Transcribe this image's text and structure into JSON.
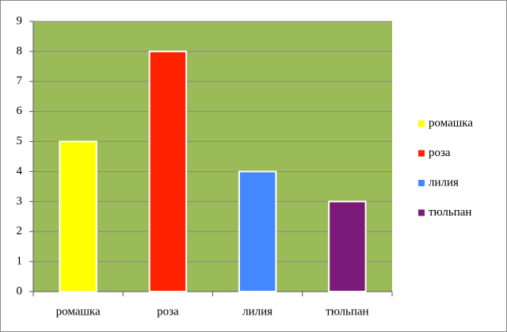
{
  "chart_data": {
    "type": "bar",
    "categories": [
      "ромашка",
      "роза",
      "лилия",
      "тюльпан"
    ],
    "values": [
      5,
      8,
      4,
      3
    ],
    "colors": [
      "#ffff00",
      "#ff2200",
      "#4488ff",
      "#7b1a78"
    ],
    "ylim": [
      0,
      9
    ],
    "yticks": [
      0,
      1,
      2,
      3,
      4,
      5,
      6,
      7,
      8,
      9
    ],
    "grid": true,
    "legend": "right"
  }
}
